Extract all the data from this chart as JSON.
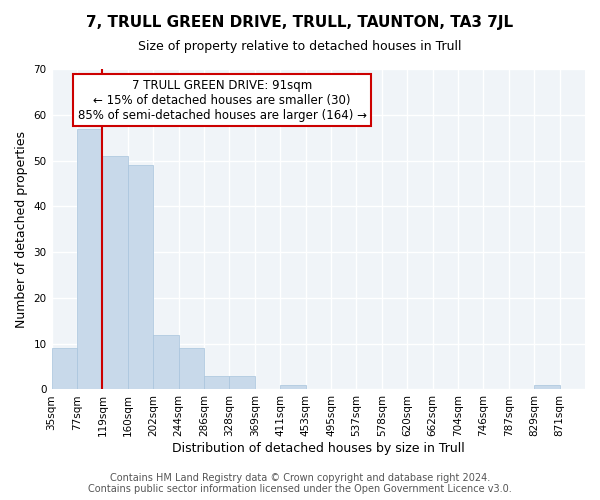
{
  "title": "7, TRULL GREEN DRIVE, TRULL, TAUNTON, TA3 7JL",
  "subtitle": "Size of property relative to detached houses in Trull",
  "xlabel": "Distribution of detached houses by size in Trull",
  "ylabel": "Number of detached properties",
  "bin_labels": [
    "35sqm",
    "77sqm",
    "119sqm",
    "160sqm",
    "202sqm",
    "244sqm",
    "286sqm",
    "328sqm",
    "369sqm",
    "411sqm",
    "453sqm",
    "495sqm",
    "537sqm",
    "578sqm",
    "620sqm",
    "662sqm",
    "704sqm",
    "746sqm",
    "787sqm",
    "829sqm",
    "871sqm"
  ],
  "bar_heights": [
    9,
    57,
    51,
    49,
    12,
    9,
    3,
    3,
    0,
    1,
    0,
    0,
    0,
    0,
    0,
    0,
    0,
    0,
    0,
    1,
    0
  ],
  "bar_color": "#c8d9ea",
  "bar_edge_color": "#a8c4dc",
  "annotation_title": "7 TRULL GREEN DRIVE: 91sqm",
  "annotation_line1": "← 15% of detached houses are smaller (30)",
  "annotation_line2": "85% of semi-detached houses are larger (164) →",
  "annotation_box_color": "#ffffff",
  "annotation_box_edge_color": "#cc0000",
  "property_line_color": "#cc0000",
  "ylim": [
    0,
    70
  ],
  "yticks": [
    0,
    10,
    20,
    30,
    40,
    50,
    60,
    70
  ],
  "footer_line1": "Contains HM Land Registry data © Crown copyright and database right 2024.",
  "footer_line2": "Contains public sector information licensed under the Open Government Licence v3.0.",
  "bg_color": "#ffffff",
  "plot_bg_color": "#f0f4f8",
  "grid_color": "#ffffff",
  "title_fontsize": 11,
  "subtitle_fontsize": 9,
  "axis_label_fontsize": 9,
  "tick_fontsize": 7.5,
  "footer_fontsize": 7,
  "annotation_fontsize": 8.5
}
